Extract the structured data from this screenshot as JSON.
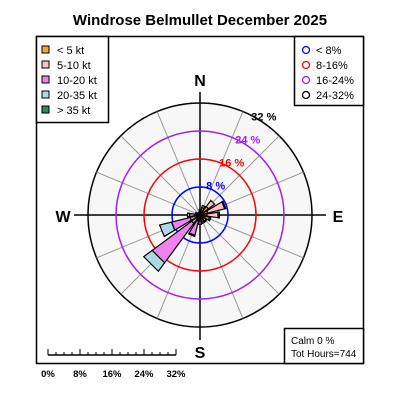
{
  "chart_data": {
    "type": "windrose",
    "title": "Windrose  Belmullet December 2025",
    "compass_labels": {
      "north": "N",
      "east": "E",
      "south": "S",
      "west": "W"
    },
    "rings": [
      {
        "value": 8,
        "label": "8 %",
        "color": "#0000ff"
      },
      {
        "value": 16,
        "label": "16 %",
        "color": "#ff0000"
      },
      {
        "value": 24,
        "label": "24 %",
        "color": "#a020f0"
      },
      {
        "value": 32,
        "label": "32 %",
        "color": "#000000"
      }
    ],
    "speed_classes": [
      {
        "label": "< 5  kt",
        "color": "#f4a53a"
      },
      {
        "label": "5-10 kt",
        "color": "#ffc0cb"
      },
      {
        "label": "10-20 kt",
        "color": "#ee82ee"
      },
      {
        "label": "20-35 kt",
        "color": "#add8e6"
      },
      {
        "label": "> 35 kt",
        "color": "#2e8b57"
      }
    ],
    "ring_legend": [
      {
        "label": "< 8%",
        "color": "#0000ff"
      },
      {
        "label": "8-16%",
        "color": "#ff0000"
      },
      {
        "label": "16-24%",
        "color": "#a020f0"
      },
      {
        "label": "24-32%",
        "color": "#000000"
      }
    ],
    "directions": [
      {
        "dir": "N",
        "values": [
          1.0,
          0.5,
          0,
          0,
          0
        ]
      },
      {
        "dir": "NNE",
        "values": [
          2.2,
          0.6,
          0,
          0,
          0
        ]
      },
      {
        "dir": "NE",
        "values": [
          3.0,
          2.2,
          0,
          0,
          0
        ]
      },
      {
        "dir": "ENE",
        "values": [
          2.3,
          5.0,
          0.3,
          0,
          0
        ]
      },
      {
        "dir": "E",
        "values": [
          2.0,
          3.2,
          0.4,
          0,
          0
        ]
      },
      {
        "dir": "ESE",
        "values": [
          1.2,
          1.6,
          0.4,
          0,
          0
        ]
      },
      {
        "dir": "SE",
        "values": [
          0.8,
          1.4,
          0.2,
          0,
          0
        ]
      },
      {
        "dir": "SSE",
        "values": [
          0.7,
          1.3,
          0.5,
          0,
          0
        ]
      },
      {
        "dir": "S",
        "values": [
          0.5,
          1.2,
          1.0,
          0,
          0
        ]
      },
      {
        "dir": "SSW",
        "values": [
          0.4,
          1.4,
          4.2,
          0.3,
          0
        ]
      },
      {
        "dir": "SW",
        "values": [
          0.5,
          2.5,
          14.0,
          3.0,
          0
        ]
      },
      {
        "dir": "WSW",
        "values": [
          0.4,
          2.5,
          5.5,
          3.5,
          0
        ]
      },
      {
        "dir": "W",
        "values": [
          0.3,
          1.3,
          1.4,
          0.6,
          0
        ]
      },
      {
        "dir": "WNW",
        "values": [
          0.3,
          0.5,
          0.6,
          0,
          0
        ]
      },
      {
        "dir": "NW",
        "values": [
          0.4,
          0.3,
          0,
          0,
          0
        ]
      },
      {
        "dir": "NNW",
        "values": [
          0.5,
          0.3,
          0,
          0,
          0
        ]
      }
    ],
    "calm_label": "Calm 0 %",
    "hours_label": "Tot Hours=744",
    "scale_labels": [
      "0%",
      "8%",
      "16%",
      "24%",
      "32%"
    ],
    "scale_max": 32
  }
}
